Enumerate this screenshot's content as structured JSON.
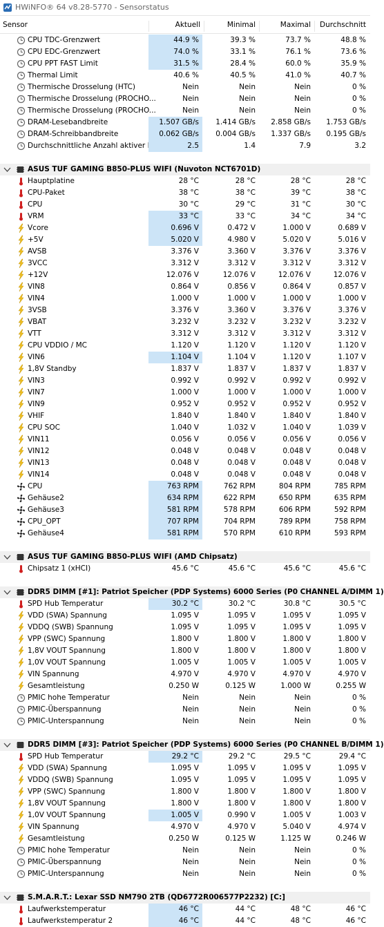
{
  "title": "HWiNFO® 64 v8.28-5770 - Sensorstatus",
  "header": [
    "Sensor",
    "Aktuell",
    "Minimal",
    "Maximal",
    "Durchschnitt"
  ],
  "groups": [
    {
      "rows": [
        {
          "icon": "clock",
          "hl": true,
          "cells": [
            "CPU TDC-Grenzwert",
            "44.9 %",
            "39.3 %",
            "73.7 %",
            "48.8 %"
          ]
        },
        {
          "icon": "clock",
          "hl": true,
          "cells": [
            "CPU EDC-Grenzwert",
            "74.0 %",
            "33.1 %",
            "76.1 %",
            "73.6 %"
          ]
        },
        {
          "icon": "clock",
          "hl": true,
          "cells": [
            "CPU PPT FAST Limit",
            "31.5 %",
            "28.4 %",
            "60.0 %",
            "35.9 %"
          ]
        },
        {
          "icon": "clock",
          "cells": [
            "Thermal Limit",
            "40.6 %",
            "40.5 %",
            "41.0 %",
            "40.7 %"
          ]
        },
        {
          "icon": "clock",
          "cells": [
            "Thermische Drosselung (HTC)",
            "Nein",
            "Nein",
            "Nein",
            "0 %"
          ]
        },
        {
          "icon": "clock",
          "cells": [
            "Thermische Drosselung (PROCHO...",
            "Nein",
            "Nein",
            "Nein",
            "0 %"
          ]
        },
        {
          "icon": "clock",
          "cells": [
            "Thermische Drosselung (PROCHO...",
            "Nein",
            "Nein",
            "Nein",
            "0 %"
          ]
        },
        {
          "icon": "clock",
          "hl": true,
          "cells": [
            "DRAM-Lesebandbreite",
            "1.507 GB/s",
            "1.414 GB/s",
            "2.858 GB/s",
            "1.753 GB/s"
          ]
        },
        {
          "icon": "clock",
          "hl": true,
          "cells": [
            "DRAM-Schreibbandbreite",
            "0.062 GB/s",
            "0.004 GB/s",
            "1.337 GB/s",
            "0.195 GB/s"
          ]
        },
        {
          "icon": "clock",
          "hl": true,
          "cells": [
            "Durchschnittliche Anzahl aktiver K...",
            "2.5",
            "1.4",
            "7.9",
            "3.2"
          ]
        }
      ]
    },
    {
      "title": "ASUS TUF GAMING B850-PLUS WIFI (Nuvoton NCT6701D)",
      "rows": [
        {
          "icon": "temp",
          "cells": [
            "Hauptplatine",
            "28 °C",
            "28 °C",
            "28 °C",
            "28 °C"
          ]
        },
        {
          "icon": "temp",
          "cells": [
            "CPU-Paket",
            "38 °C",
            "38 °C",
            "39 °C",
            "38 °C"
          ]
        },
        {
          "icon": "temp",
          "cells": [
            "CPU",
            "30 °C",
            "29 °C",
            "31 °C",
            "30 °C"
          ]
        },
        {
          "icon": "temp",
          "hl": true,
          "cells": [
            "VRM",
            "33 °C",
            "33 °C",
            "34 °C",
            "34 °C"
          ]
        },
        {
          "icon": "volt",
          "hl": true,
          "cells": [
            "Vcore",
            "0.696 V",
            "0.472 V",
            "1.000 V",
            "0.689 V"
          ]
        },
        {
          "icon": "volt",
          "hl": true,
          "cells": [
            "+5V",
            "5.020 V",
            "4.980 V",
            "5.020 V",
            "5.016 V"
          ]
        },
        {
          "icon": "volt",
          "cells": [
            "AVSB",
            "3.376 V",
            "3.360 V",
            "3.376 V",
            "3.376 V"
          ]
        },
        {
          "icon": "volt",
          "cells": [
            "3VCC",
            "3.312 V",
            "3.312 V",
            "3.312 V",
            "3.312 V"
          ]
        },
        {
          "icon": "volt",
          "cells": [
            "+12V",
            "12.076 V",
            "12.076 V",
            "12.076 V",
            "12.076 V"
          ]
        },
        {
          "icon": "volt",
          "cells": [
            "VIN8",
            "0.864 V",
            "0.856 V",
            "0.864 V",
            "0.857 V"
          ]
        },
        {
          "icon": "volt",
          "cells": [
            "VIN4",
            "1.000 V",
            "1.000 V",
            "1.000 V",
            "1.000 V"
          ]
        },
        {
          "icon": "volt",
          "cells": [
            "3VSB",
            "3.376 V",
            "3.360 V",
            "3.376 V",
            "3.376 V"
          ]
        },
        {
          "icon": "volt",
          "cells": [
            "VBAT",
            "3.232 V",
            "3.232 V",
            "3.232 V",
            "3.232 V"
          ]
        },
        {
          "icon": "volt",
          "cells": [
            "VTT",
            "3.312 V",
            "3.312 V",
            "3.312 V",
            "3.312 V"
          ]
        },
        {
          "icon": "volt",
          "cells": [
            "CPU VDDIO / MC",
            "1.120 V",
            "1.120 V",
            "1.120 V",
            "1.120 V"
          ]
        },
        {
          "icon": "volt",
          "hl": true,
          "cells": [
            "VIN6",
            "1.104 V",
            "1.104 V",
            "1.120 V",
            "1.107 V"
          ]
        },
        {
          "icon": "volt",
          "cells": [
            "1,8V Standby",
            "1.837 V",
            "1.837 V",
            "1.837 V",
            "1.837 V"
          ]
        },
        {
          "icon": "volt",
          "cells": [
            "VIN3",
            "0.992 V",
            "0.992 V",
            "0.992 V",
            "0.992 V"
          ]
        },
        {
          "icon": "volt",
          "cells": [
            "VIN7",
            "1.000 V",
            "1.000 V",
            "1.000 V",
            "1.000 V"
          ]
        },
        {
          "icon": "volt",
          "cells": [
            "VIN9",
            "0.952 V",
            "0.952 V",
            "0.952 V",
            "0.952 V"
          ]
        },
        {
          "icon": "volt",
          "cells": [
            "VHIF",
            "1.840 V",
            "1.840 V",
            "1.840 V",
            "1.840 V"
          ]
        },
        {
          "icon": "volt",
          "cells": [
            "CPU SOC",
            "1.040 V",
            "1.032 V",
            "1.040 V",
            "1.039 V"
          ]
        },
        {
          "icon": "volt",
          "cells": [
            "VIN11",
            "0.056 V",
            "0.056 V",
            "0.056 V",
            "0.056 V"
          ]
        },
        {
          "icon": "volt",
          "cells": [
            "VIN12",
            "0.048 V",
            "0.048 V",
            "0.048 V",
            "0.048 V"
          ]
        },
        {
          "icon": "volt",
          "cells": [
            "VIN13",
            "0.048 V",
            "0.048 V",
            "0.048 V",
            "0.048 V"
          ]
        },
        {
          "icon": "volt",
          "cells": [
            "VIN14",
            "0.048 V",
            "0.048 V",
            "0.048 V",
            "0.048 V"
          ]
        },
        {
          "icon": "fan",
          "hl": true,
          "cells": [
            "CPU",
            "763 RPM",
            "762 RPM",
            "804 RPM",
            "785 RPM"
          ]
        },
        {
          "icon": "fan",
          "hl": true,
          "cells": [
            "Gehäuse2",
            "634 RPM",
            "622 RPM",
            "650 RPM",
            "635 RPM"
          ]
        },
        {
          "icon": "fan",
          "hl": true,
          "cells": [
            "Gehäuse3",
            "581 RPM",
            "578 RPM",
            "606 RPM",
            "592 RPM"
          ]
        },
        {
          "icon": "fan",
          "hl": true,
          "cells": [
            "CPU_OPT",
            "707 RPM",
            "704 RPM",
            "789 RPM",
            "758 RPM"
          ]
        },
        {
          "icon": "fan",
          "hl": true,
          "cells": [
            "Gehäuse4",
            "581 RPM",
            "570 RPM",
            "610 RPM",
            "593 RPM"
          ]
        }
      ]
    },
    {
      "title": "ASUS TUF GAMING B850-PLUS WIFI (AMD Chipsatz)",
      "rows": [
        {
          "icon": "temp",
          "cells": [
            "Chipsatz 1 (xHCI)",
            "45.6 °C",
            "45.6 °C",
            "45.6 °C",
            "45.6 °C"
          ]
        }
      ]
    },
    {
      "title": "DDR5 DIMM [#1]: Patriot Speicher (PDP Systems) 6000 Series (P0 CHANNEL A/DIMM 1)",
      "rows": [
        {
          "icon": "temp",
          "hl": true,
          "cells": [
            "SPD Hub Temperatur",
            "30.2 °C",
            "30.2 °C",
            "30.8 °C",
            "30.5 °C"
          ]
        },
        {
          "icon": "volt",
          "cells": [
            "VDD (SWA) Spannung",
            "1.095 V",
            "1.095 V",
            "1.095 V",
            "1.095 V"
          ]
        },
        {
          "icon": "volt",
          "cells": [
            "VDDQ (SWB) Spannung",
            "1.095 V",
            "1.095 V",
            "1.095 V",
            "1.095 V"
          ]
        },
        {
          "icon": "volt",
          "cells": [
            "VPP (SWC) Spannung",
            "1.800 V",
            "1.800 V",
            "1.800 V",
            "1.800 V"
          ]
        },
        {
          "icon": "volt",
          "cells": [
            "1,8V VOUT Spannung",
            "1.800 V",
            "1.800 V",
            "1.800 V",
            "1.800 V"
          ]
        },
        {
          "icon": "volt",
          "cells": [
            "1,0V VOUT Spannung",
            "1.005 V",
            "1.005 V",
            "1.005 V",
            "1.005 V"
          ]
        },
        {
          "icon": "volt",
          "cells": [
            "VIN Spannung",
            "4.970 V",
            "4.970 V",
            "4.970 V",
            "4.970 V"
          ]
        },
        {
          "icon": "volt",
          "cells": [
            "Gesamtleistung",
            "0.250 W",
            "0.125 W",
            "1.000 W",
            "0.255 W"
          ]
        },
        {
          "icon": "clock",
          "cells": [
            "PMIC hohe Temperatur",
            "Nein",
            "Nein",
            "Nein",
            "0 %"
          ]
        },
        {
          "icon": "clock",
          "cells": [
            "PMIC-Überspannung",
            "Nein",
            "Nein",
            "Nein",
            "0 %"
          ]
        },
        {
          "icon": "clock",
          "cells": [
            "PMIC-Unterspannung",
            "Nein",
            "Nein",
            "Nein",
            "0 %"
          ]
        }
      ]
    },
    {
      "title": "DDR5 DIMM [#3]: Patriot Speicher (PDP Systems) 6000 Series (P0 CHANNEL B/DIMM 1)",
      "rows": [
        {
          "icon": "temp",
          "hl": true,
          "cells": [
            "SPD Hub Temperatur",
            "29.2 °C",
            "29.2 °C",
            "29.5 °C",
            "29.4 °C"
          ]
        },
        {
          "icon": "volt",
          "cells": [
            "VDD (SWA) Spannung",
            "1.095 V",
            "1.095 V",
            "1.095 V",
            "1.095 V"
          ]
        },
        {
          "icon": "volt",
          "cells": [
            "VDDQ (SWB) Spannung",
            "1.095 V",
            "1.095 V",
            "1.095 V",
            "1.095 V"
          ]
        },
        {
          "icon": "volt",
          "cells": [
            "VPP (SWC) Spannung",
            "1.800 V",
            "1.800 V",
            "1.800 V",
            "1.800 V"
          ]
        },
        {
          "icon": "volt",
          "cells": [
            "1,8V VOUT Spannung",
            "1.800 V",
            "1.800 V",
            "1.800 V",
            "1.800 V"
          ]
        },
        {
          "icon": "volt",
          "hl": true,
          "cells": [
            "1,0V VOUT Spannung",
            "1.005 V",
            "0.990 V",
            "1.005 V",
            "1.003 V"
          ]
        },
        {
          "icon": "volt",
          "cells": [
            "VIN Spannung",
            "4.970 V",
            "4.970 V",
            "5.040 V",
            "4.974 V"
          ]
        },
        {
          "icon": "volt",
          "cells": [
            "Gesamtleistung",
            "0.250 W",
            "0.125 W",
            "1.125 W",
            "0.246 W"
          ]
        },
        {
          "icon": "clock",
          "cells": [
            "PMIC hohe Temperatur",
            "Nein",
            "Nein",
            "Nein",
            "0 %"
          ]
        },
        {
          "icon": "clock",
          "cells": [
            "PMIC-Überspannung",
            "Nein",
            "Nein",
            "Nein",
            "0 %"
          ]
        },
        {
          "icon": "clock",
          "cells": [
            "PMIC-Unterspannung",
            "Nein",
            "Nein",
            "Nein",
            "0 %"
          ]
        }
      ]
    },
    {
      "title": "S.M.A.R.T.: Lexar SSD NM790 2TB (QD6772R006577P2232) [C:]",
      "rows": [
        {
          "icon": "temp",
          "hl": true,
          "cells": [
            "Laufwerkstemperatur",
            "46 °C",
            "44 °C",
            "48 °C",
            "46 °C"
          ]
        },
        {
          "icon": "temp",
          "hl": true,
          "cells": [
            "Laufwerkstemperatur 2",
            "46 °C",
            "44 °C",
            "48 °C",
            "46 °C"
          ]
        }
      ]
    }
  ]
}
